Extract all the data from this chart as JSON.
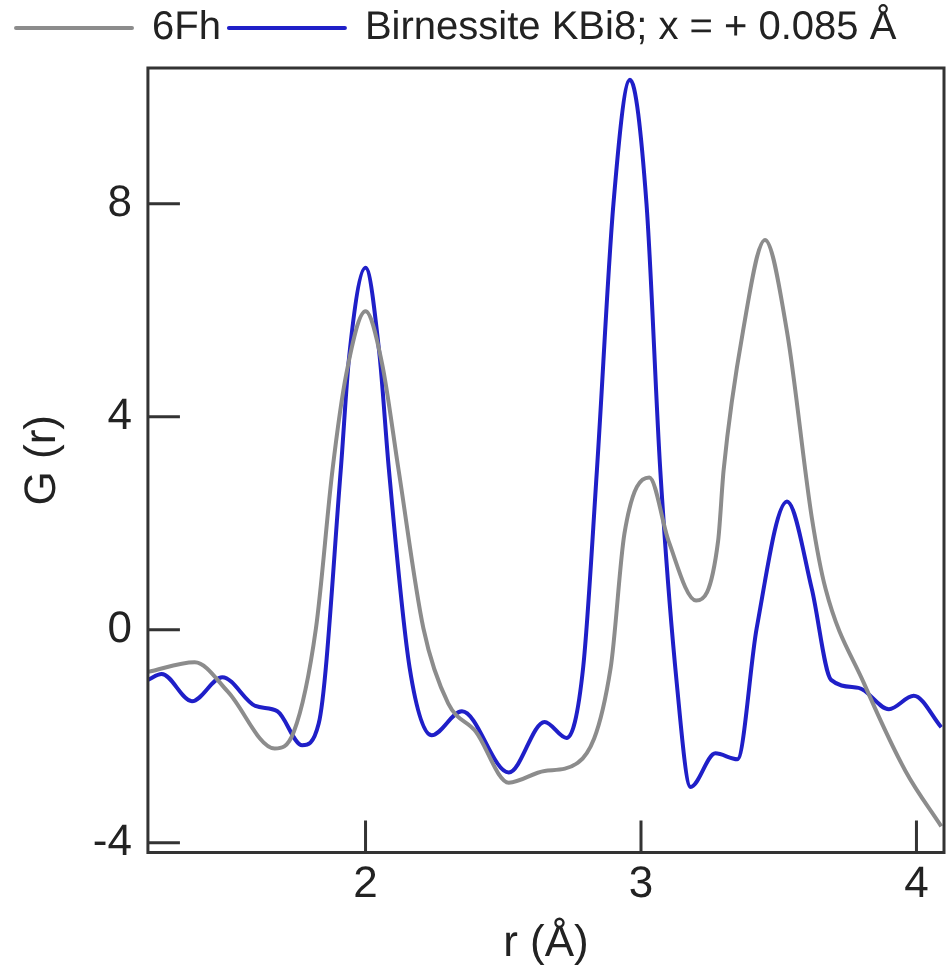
{
  "chart_data": {
    "type": "line",
    "xlabel": "r (Å)",
    "ylabel": "G (r)",
    "legend": "top left",
    "grid": false,
    "marker": "none",
    "line_style": "solid",
    "xlim": [
      1.21,
      4.1
    ],
    "xticks": [
      2,
      3,
      4
    ],
    "ylim": [
      -4.18,
      10.55
    ],
    "yticks": [
      8,
      4,
      0,
      -4
    ],
    "series": [
      {
        "name": "6Fh",
        "color": "#8c8c8c",
        "x": [
          1.21,
          1.38,
          1.5,
          1.67,
          1.74,
          1.82,
          1.88,
          1.93,
          2.0,
          2.06,
          2.12,
          2.21,
          2.3,
          2.4,
          2.52,
          2.65,
          2.77,
          2.89,
          2.94,
          3.03,
          3.1,
          3.2,
          3.28,
          3.3,
          3.37,
          3.45,
          3.53,
          3.62,
          3.67,
          3.81,
          3.96,
          4.09
        ],
        "values": [
          -0.79,
          -0.61,
          -1.16,
          -2.23,
          -1.91,
          0.03,
          3.0,
          4.8,
          5.98,
          5.0,
          3.0,
          0.03,
          -1.38,
          -1.91,
          -2.87,
          -2.65,
          -2.5,
          -0.71,
          1.81,
          2.86,
          1.67,
          0.55,
          1.67,
          3.0,
          5.6,
          7.32,
          5.6,
          2.11,
          0.77,
          -1.01,
          -2.65,
          -3.69
        ]
      },
      {
        "name": "Birnessite KBi8; x = + 0.085 Å",
        "color": "#1f1fc8",
        "x": [
          1.21,
          1.26,
          1.37,
          1.48,
          1.6,
          1.68,
          1.77,
          1.83,
          1.91,
          1.94,
          2.0,
          2.05,
          2.085,
          2.16,
          2.24,
          2.35,
          2.52,
          2.65,
          2.73,
          2.79,
          2.84,
          2.9,
          2.96,
          3.02,
          3.07,
          3.13,
          3.18,
          3.27,
          3.35,
          3.42,
          3.53,
          3.62,
          3.69,
          3.79,
          3.9,
          3.99,
          4.09
        ],
        "values": [
          -0.94,
          -0.83,
          -1.34,
          -0.89,
          -1.43,
          -1.53,
          -2.17,
          -1.76,
          3.0,
          5.1,
          6.8,
          5.2,
          3.0,
          -0.71,
          -1.98,
          -1.53,
          -2.68,
          -1.73,
          -2.03,
          -0.71,
          3.0,
          8.0,
          10.33,
          8.0,
          3.0,
          -1.01,
          -2.95,
          -2.32,
          -2.43,
          0.03,
          2.41,
          0.77,
          -0.94,
          -1.09,
          -1.49,
          -1.24,
          -1.83
        ]
      }
    ]
  }
}
